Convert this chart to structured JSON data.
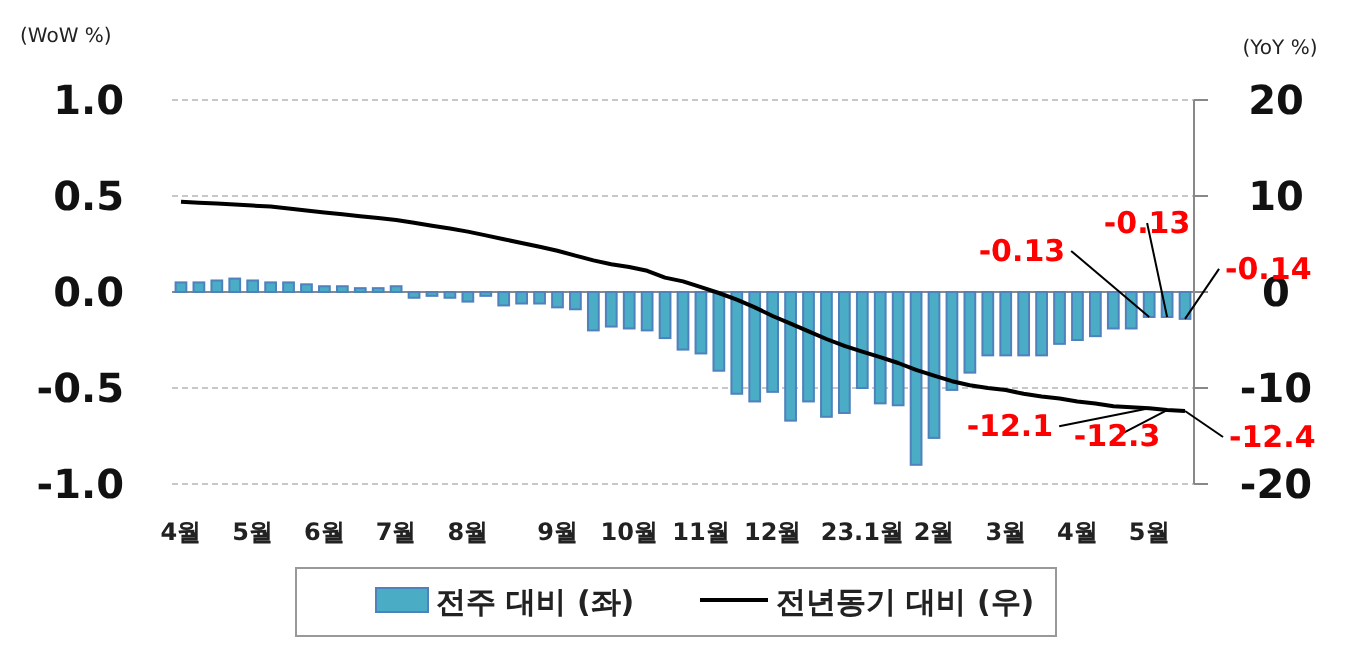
{
  "chart_data": {
    "type": "bar",
    "ylabel": "(WoW %)",
    "y2label": "(YoY %)",
    "categories": [
      "4월",
      null,
      null,
      null,
      "5월",
      null,
      null,
      null,
      "6월",
      null,
      null,
      null,
      "7월",
      null,
      null,
      null,
      "8월",
      null,
      null,
      null,
      null,
      "9월",
      null,
      null,
      null,
      "10월",
      null,
      null,
      null,
      "11월",
      null,
      null,
      null,
      "12월",
      null,
      null,
      null,
      null,
      "23.1월",
      null,
      null,
      null,
      "2월",
      null,
      null,
      null,
      "3월",
      null,
      null,
      null,
      "4월",
      null,
      null,
      null,
      "5월",
      null,
      null
    ],
    "series": [
      {
        "name": "전주 대비 (좌)",
        "color": "#4bacc6",
        "values": [
          0.05,
          0.05,
          0.06,
          0.07,
          0.06,
          0.05,
          0.05,
          0.04,
          0.03,
          0.03,
          0.02,
          0.02,
          0.03,
          -0.03,
          -0.02,
          -0.03,
          -0.05,
          -0.02,
          -0.07,
          -0.06,
          -0.06,
          -0.08,
          -0.09,
          -0.2,
          -0.18,
          -0.19,
          -0.2,
          -0.24,
          -0.3,
          -0.32,
          -0.41,
          -0.53,
          -0.57,
          -0.52,
          -0.67,
          -0.57,
          -0.65,
          -0.63,
          -0.5,
          -0.58,
          -0.59,
          -0.9,
          -0.76,
          -0.51,
          -0.42,
          -0.33,
          -0.33,
          -0.33,
          -0.33,
          -0.27,
          -0.25,
          -0.23,
          -0.19,
          -0.19,
          -0.13,
          -0.13,
          -0.14
        ],
        "value_labels": [
          null,
          null,
          null,
          null,
          null,
          null,
          null,
          null,
          null,
          null,
          null,
          null,
          null,
          null,
          null,
          null,
          null,
          null,
          null,
          null,
          null,
          null,
          null,
          null,
          null,
          null,
          null,
          null,
          null,
          null,
          null,
          null,
          null,
          null,
          null,
          null,
          null,
          null,
          null,
          null,
          null,
          null,
          null,
          null,
          null,
          null,
          null,
          null,
          null,
          null,
          null,
          null,
          null,
          null,
          "-0.13",
          "-0.13",
          "-0.14"
        ]
      },
      {
        "name": "전년동기 대비 (우)",
        "type": "line",
        "axis": "y2",
        "color": "#000000",
        "values": [
          9.4,
          9.3,
          9.2,
          9.1,
          9.0,
          8.9,
          8.7,
          8.5,
          8.3,
          8.1,
          7.9,
          7.7,
          7.5,
          7.2,
          6.9,
          6.6,
          6.3,
          5.9,
          5.5,
          5.1,
          4.7,
          4.3,
          3.8,
          3.3,
          2.9,
          2.6,
          2.2,
          1.5,
          1.1,
          0.5,
          -0.1,
          -0.8,
          -1.6,
          -2.5,
          -3.3,
          -4.1,
          -4.9,
          -5.6,
          -6.2,
          -6.8,
          -7.4,
          -8.1,
          -8.7,
          -9.3,
          -9.7,
          -10.0,
          -10.2,
          -10.6,
          -10.9,
          -11.1,
          -11.4,
          -11.6,
          -11.9,
          -12.0,
          -12.1,
          -12.3,
          -12.4
        ],
        "value_labels": [
          null,
          null,
          null,
          null,
          null,
          null,
          null,
          null,
          null,
          null,
          null,
          null,
          null,
          null,
          null,
          null,
          null,
          null,
          null,
          null,
          null,
          null,
          null,
          null,
          null,
          null,
          null,
          null,
          null,
          null,
          null,
          null,
          null,
          null,
          null,
          null,
          null,
          null,
          null,
          null,
          null,
          null,
          null,
          null,
          null,
          null,
          null,
          null,
          null,
          null,
          null,
          null,
          null,
          null,
          "-12.1",
          "-12.3",
          "-12.4"
        ]
      }
    ],
    "ylim": [
      -1,
      1
    ],
    "yticks": [
      {
        "value": 1,
        "label": "1.0"
      },
      {
        "value": 0.5,
        "label": "0.5"
      },
      {
        "value": 0,
        "label": "0.0"
      },
      {
        "value": -0.5,
        "label": "-0.5"
      },
      {
        "value": -1,
        "label": "-1.0"
      }
    ],
    "y2lim": [
      -20,
      20
    ],
    "y2ticks": [
      20,
      10,
      0,
      -10,
      -20
    ],
    "grid": "y",
    "legend": "bottom",
    "line_style": "solid"
  }
}
